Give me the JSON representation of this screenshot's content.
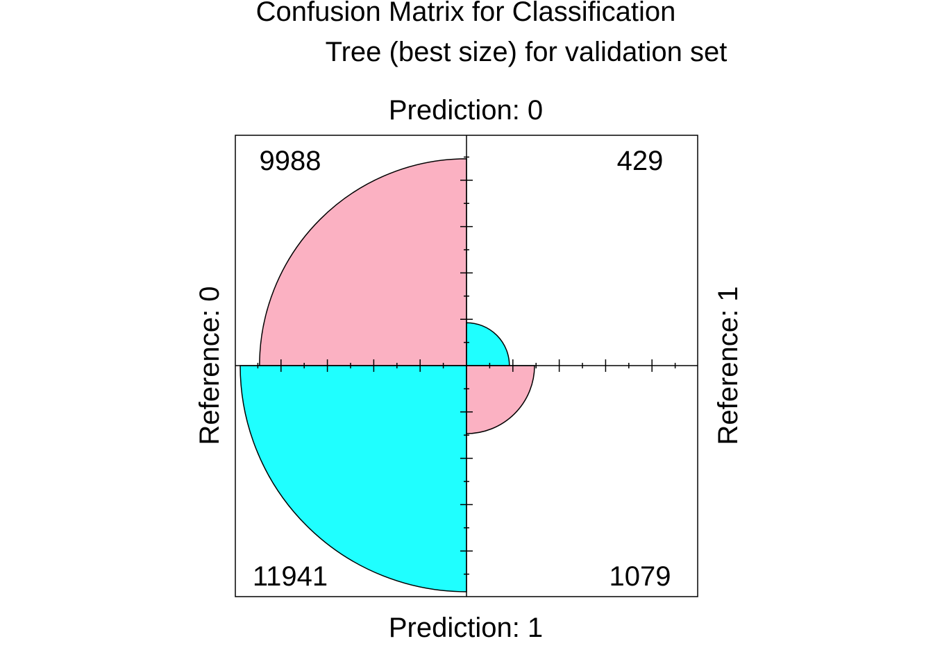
{
  "chart_data": {
    "type": "fourfoldplot",
    "title": "Confusion Matrix for Classification\n        Tree (best size) for validation set",
    "title_lines": [
      "Confusion Matrix for Classification",
      "Tree (best size) for validation set"
    ],
    "labels": {
      "top": "Prediction: 0",
      "bottom": "Prediction: 1",
      "left": "Reference: 0",
      "right": "Reference: 1"
    },
    "cells": [
      {
        "quadrant": "top-left",
        "value": 9988,
        "color": "#fbb1c2"
      },
      {
        "quadrant": "top-right",
        "value": 429,
        "color": "#1fffff"
      },
      {
        "quadrant": "bottom-left",
        "value": 11941,
        "color": "#1fffff"
      },
      {
        "quadrant": "bottom-right",
        "value": 1079,
        "color": "#fbb1c2"
      }
    ],
    "grid": false
  },
  "colors": {
    "pink": "#fbb1c2",
    "cyan": "#1fffff",
    "line": "#000000",
    "background": "#ffffff"
  }
}
